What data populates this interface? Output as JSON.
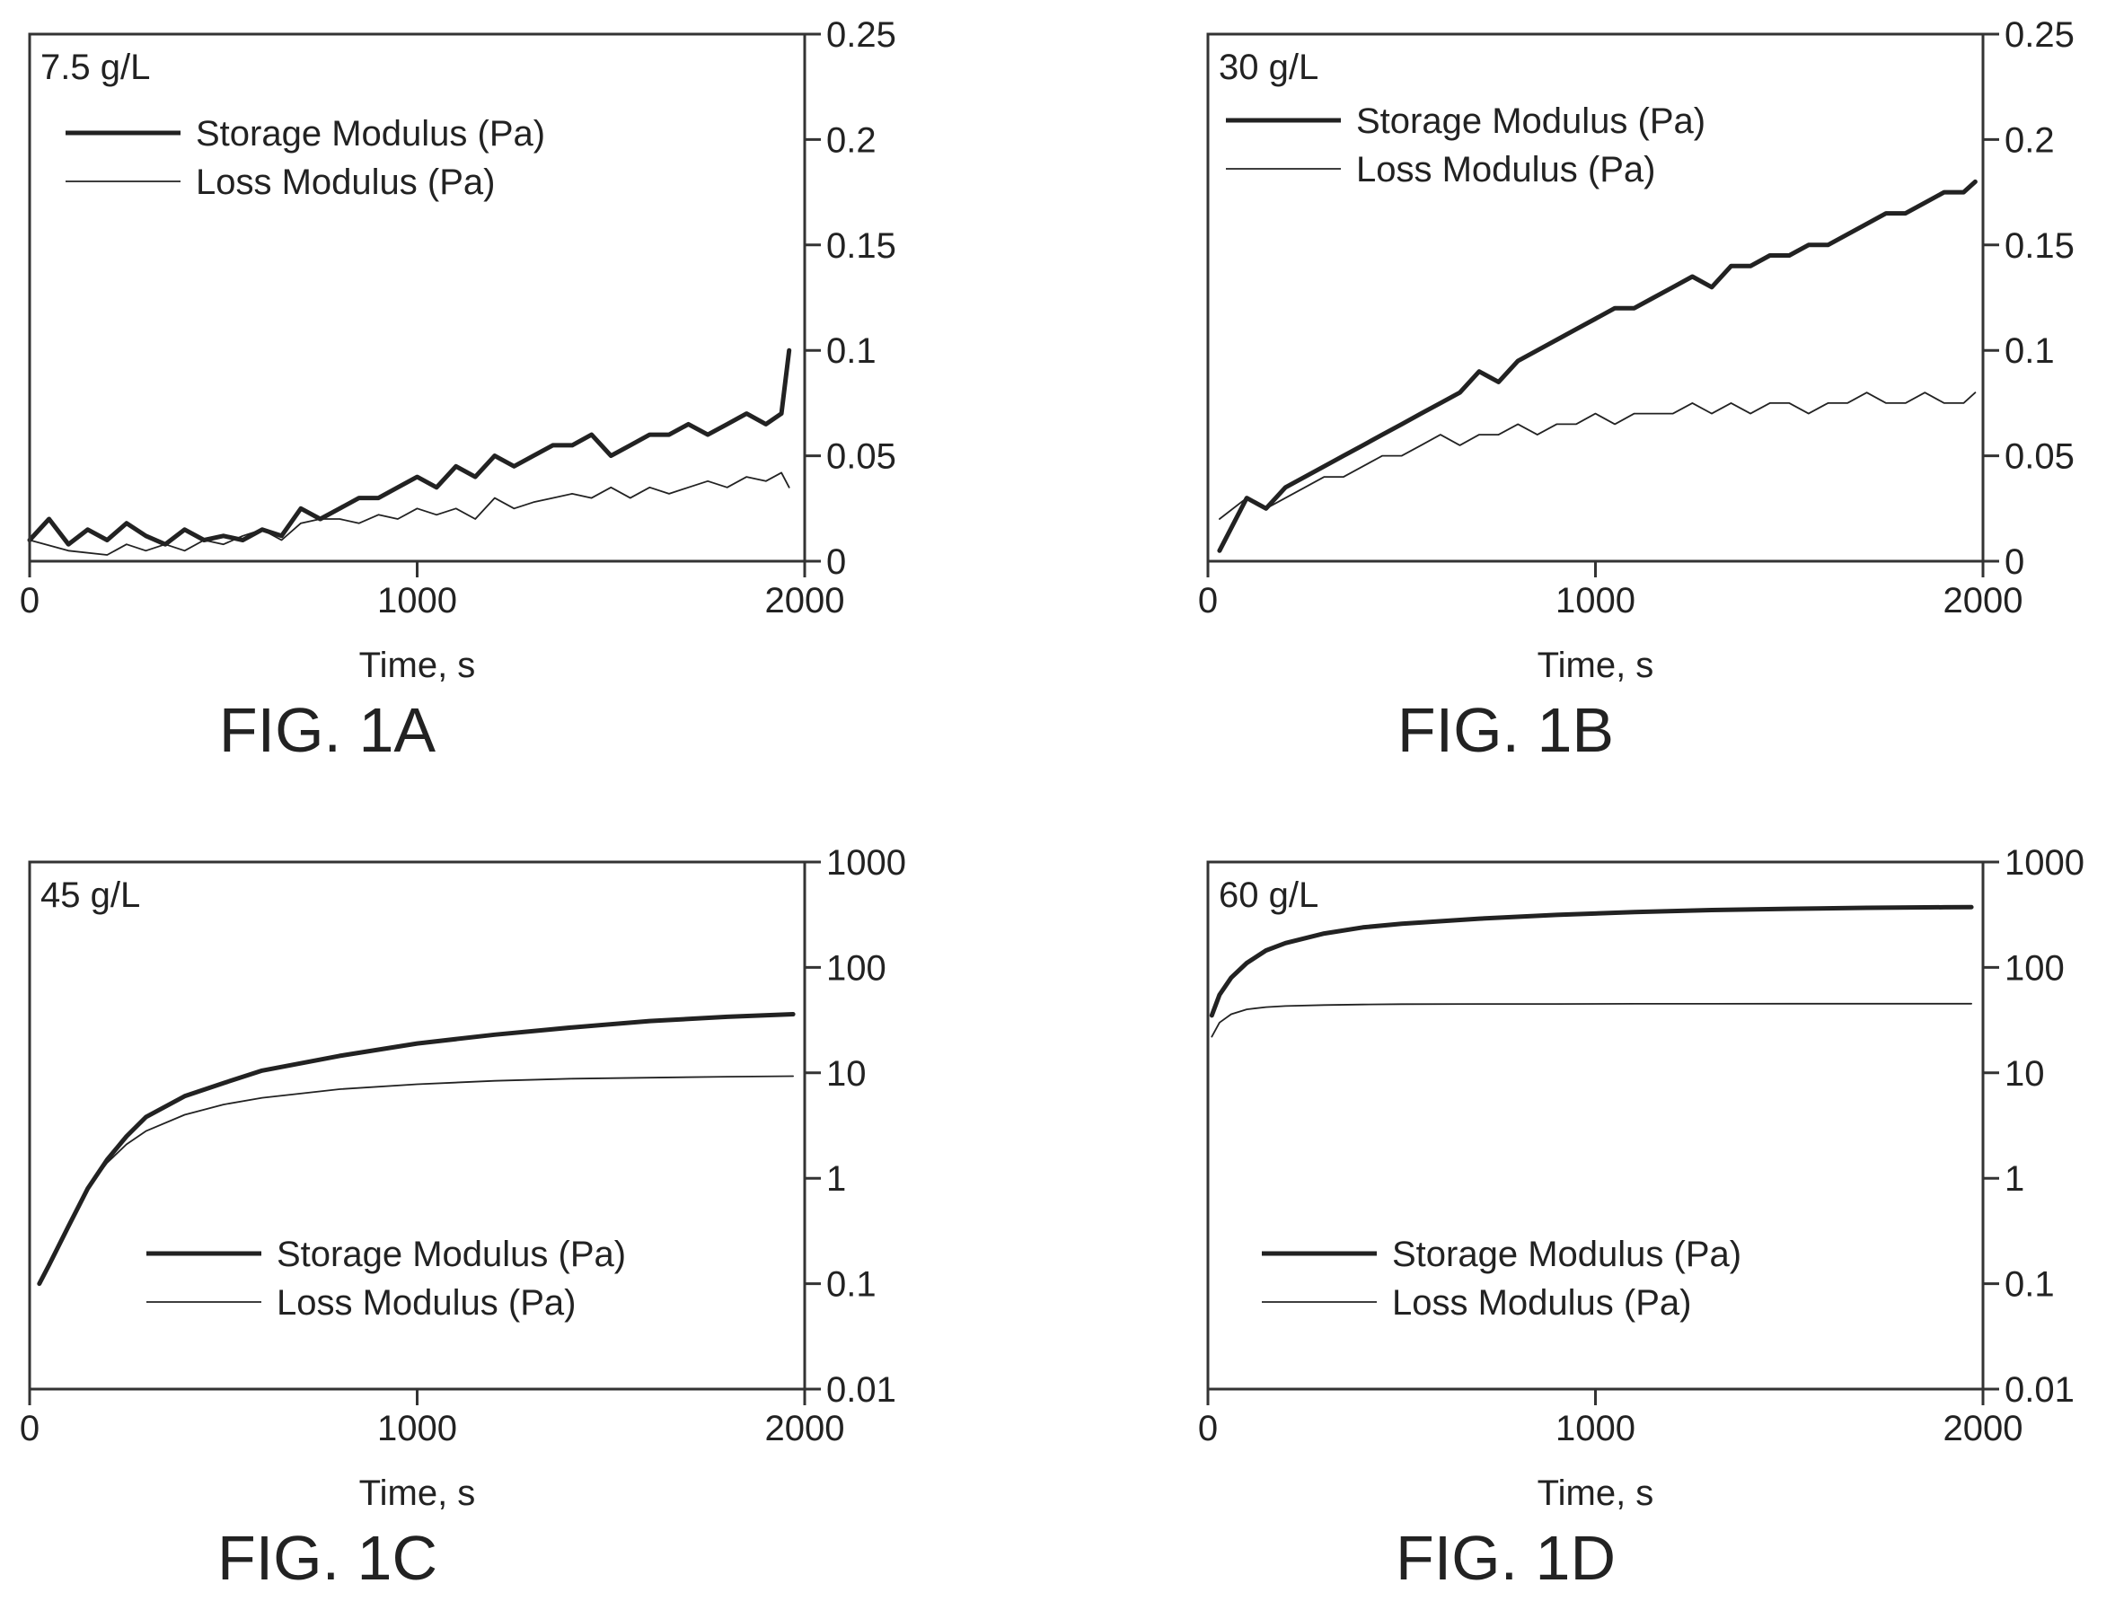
{
  "chart_data": [
    {
      "type": "line",
      "panel_label": "7.5 g/L",
      "caption": "FIG. 1A",
      "xlabel": "Time, s",
      "xlim": [
        0,
        2000
      ],
      "xticks": [
        "0",
        "1000",
        "2000"
      ],
      "ylim": [
        0,
        0.25
      ],
      "yscale": "linear",
      "yticks": [
        "0",
        "0.05",
        "0.1",
        "0.15",
        "0.2",
        "0.25"
      ],
      "legend_position": "top-left",
      "series": [
        {
          "name": "Storage Modulus (Pa)",
          "color": "#222222",
          "x": [
            0,
            50,
            100,
            150,
            200,
            250,
            300,
            350,
            400,
            450,
            500,
            550,
            600,
            650,
            700,
            750,
            800,
            850,
            900,
            950,
            1000,
            1050,
            1100,
            1150,
            1200,
            1250,
            1300,
            1350,
            1400,
            1450,
            1500,
            1550,
            1600,
            1650,
            1700,
            1750,
            1800,
            1850,
            1900,
            1940,
            1960
          ],
          "values": [
            0.01,
            0.02,
            0.008,
            0.015,
            0.01,
            0.018,
            0.012,
            0.008,
            0.015,
            0.01,
            0.012,
            0.01,
            0.015,
            0.012,
            0.025,
            0.02,
            0.025,
            0.03,
            0.03,
            0.035,
            0.04,
            0.035,
            0.045,
            0.04,
            0.05,
            0.045,
            0.05,
            0.055,
            0.055,
            0.06,
            0.05,
            0.055,
            0.06,
            0.06,
            0.065,
            0.06,
            0.065,
            0.07,
            0.065,
            0.07,
            0.1
          ]
        },
        {
          "name": "Loss Modulus (Pa)",
          "color": "#222222",
          "x": [
            0,
            100,
            200,
            250,
            300,
            350,
            400,
            450,
            500,
            550,
            600,
            650,
            700,
            750,
            800,
            850,
            900,
            950,
            1000,
            1050,
            1100,
            1150,
            1200,
            1250,
            1300,
            1350,
            1400,
            1450,
            1500,
            1550,
            1600,
            1650,
            1700,
            1750,
            1800,
            1850,
            1900,
            1940,
            1960
          ],
          "values": [
            0.01,
            0.005,
            0.003,
            0.008,
            0.005,
            0.008,
            0.005,
            0.01,
            0.008,
            0.012,
            0.015,
            0.01,
            0.018,
            0.02,
            0.02,
            0.018,
            0.022,
            0.02,
            0.025,
            0.022,
            0.025,
            0.02,
            0.03,
            0.025,
            0.028,
            0.03,
            0.032,
            0.03,
            0.035,
            0.03,
            0.035,
            0.032,
            0.035,
            0.038,
            0.035,
            0.04,
            0.038,
            0.042,
            0.035
          ]
        }
      ]
    },
    {
      "type": "line",
      "panel_label": "30 g/L",
      "caption": "FIG. 1B",
      "xlabel": "Time, s",
      "xlim": [
        0,
        2000
      ],
      "xticks": [
        "0",
        "1000",
        "2000"
      ],
      "ylim": [
        0,
        0.25
      ],
      "yscale": "linear",
      "yticks": [
        "0",
        "0.05",
        "0.1",
        "0.15",
        "0.2",
        "0.25"
      ],
      "legend_position": "top-left",
      "series": [
        {
          "name": "Storage Modulus (Pa)",
          "color": "#222222",
          "x": [
            30,
            100,
            150,
            200,
            250,
            300,
            350,
            400,
            450,
            500,
            550,
            600,
            650,
            700,
            750,
            800,
            850,
            900,
            950,
            1000,
            1050,
            1100,
            1150,
            1200,
            1250,
            1300,
            1350,
            1400,
            1450,
            1500,
            1550,
            1600,
            1650,
            1700,
            1750,
            1800,
            1850,
            1900,
            1950,
            1980
          ],
          "values": [
            0.005,
            0.03,
            0.025,
            0.035,
            0.04,
            0.045,
            0.05,
            0.055,
            0.06,
            0.065,
            0.07,
            0.075,
            0.08,
            0.09,
            0.085,
            0.095,
            0.1,
            0.105,
            0.11,
            0.115,
            0.12,
            0.12,
            0.125,
            0.13,
            0.135,
            0.13,
            0.14,
            0.14,
            0.145,
            0.145,
            0.15,
            0.15,
            0.155,
            0.16,
            0.165,
            0.165,
            0.17,
            0.175,
            0.175,
            0.18
          ]
        },
        {
          "name": "Loss Modulus (Pa)",
          "color": "#222222",
          "x": [
            30,
            100,
            150,
            200,
            250,
            300,
            350,
            400,
            450,
            500,
            550,
            600,
            650,
            700,
            750,
            800,
            850,
            900,
            950,
            1000,
            1050,
            1100,
            1150,
            1200,
            1250,
            1300,
            1350,
            1400,
            1450,
            1500,
            1550,
            1600,
            1650,
            1700,
            1750,
            1800,
            1850,
            1900,
            1950,
            1980
          ],
          "values": [
            0.02,
            0.03,
            0.025,
            0.03,
            0.035,
            0.04,
            0.04,
            0.045,
            0.05,
            0.05,
            0.055,
            0.06,
            0.055,
            0.06,
            0.06,
            0.065,
            0.06,
            0.065,
            0.065,
            0.07,
            0.065,
            0.07,
            0.07,
            0.07,
            0.075,
            0.07,
            0.075,
            0.07,
            0.075,
            0.075,
            0.07,
            0.075,
            0.075,
            0.08,
            0.075,
            0.075,
            0.08,
            0.075,
            0.075,
            0.08
          ]
        }
      ]
    },
    {
      "type": "line",
      "panel_label": "45 g/L",
      "caption": "FIG. 1C",
      "xlabel": "Time, s",
      "xlim": [
        0,
        2000
      ],
      "xticks": [
        "0",
        "1000",
        "2000"
      ],
      "ylim": [
        0.01,
        1000
      ],
      "yscale": "log",
      "yticks": [
        "0.01",
        "0.1",
        "1",
        "10",
        "100",
        "1000"
      ],
      "legend_position": "bottom-left",
      "series": [
        {
          "name": "Storage Modulus (Pa)",
          "color": "#222222",
          "x": [
            25,
            50,
            100,
            150,
            200,
            250,
            300,
            400,
            500,
            600,
            800,
            1000,
            1200,
            1400,
            1600,
            1800,
            1970
          ],
          "values": [
            0.1,
            0.15,
            0.35,
            0.8,
            1.5,
            2.5,
            3.8,
            6.0,
            8.0,
            10.5,
            14.5,
            19.0,
            23.0,
            27.0,
            31.0,
            34.0,
            36.0
          ]
        },
        {
          "name": "Loss Modulus (Pa)",
          "color": "#222222",
          "x": [
            25,
            50,
            100,
            150,
            200,
            250,
            300,
            400,
            500,
            600,
            800,
            1000,
            1200,
            1400,
            1600,
            1800,
            1970
          ],
          "values": [
            0.1,
            0.15,
            0.35,
            0.8,
            1.4,
            2.1,
            2.8,
            4.0,
            5.0,
            5.8,
            7.0,
            7.8,
            8.4,
            8.8,
            9.0,
            9.2,
            9.3
          ]
        }
      ]
    },
    {
      "type": "line",
      "panel_label": "60 g/L",
      "caption": "FIG. 1D",
      "xlabel": "Time, s",
      "xlim": [
        0,
        2000
      ],
      "xticks": [
        "0",
        "1000",
        "2000"
      ],
      "ylim": [
        0.01,
        1000
      ],
      "yscale": "log",
      "yticks": [
        "0.01",
        "0.1",
        "1",
        "10",
        "100",
        "1000"
      ],
      "legend_position": "bottom-left",
      "series": [
        {
          "name": "Storage Modulus (Pa)",
          "color": "#222222",
          "x": [
            10,
            30,
            60,
            100,
            150,
            200,
            300,
            400,
            500,
            700,
            900,
            1100,
            1300,
            1500,
            1700,
            1900,
            1970
          ],
          "values": [
            35,
            55,
            80,
            110,
            145,
            170,
            210,
            240,
            260,
            290,
            315,
            335,
            350,
            360,
            368,
            372,
            373
          ]
        },
        {
          "name": "Loss Modulus (Pa)",
          "color": "#222222",
          "x": [
            10,
            30,
            60,
            100,
            150,
            200,
            300,
            400,
            500,
            700,
            900,
            1100,
            1300,
            1500,
            1700,
            1900,
            1970
          ],
          "values": [
            22,
            30,
            36,
            40,
            42,
            43,
            44,
            44.5,
            44.8,
            45,
            45,
            45.2,
            45.2,
            45.3,
            45.3,
            45.3,
            45.3
          ]
        }
      ]
    }
  ]
}
